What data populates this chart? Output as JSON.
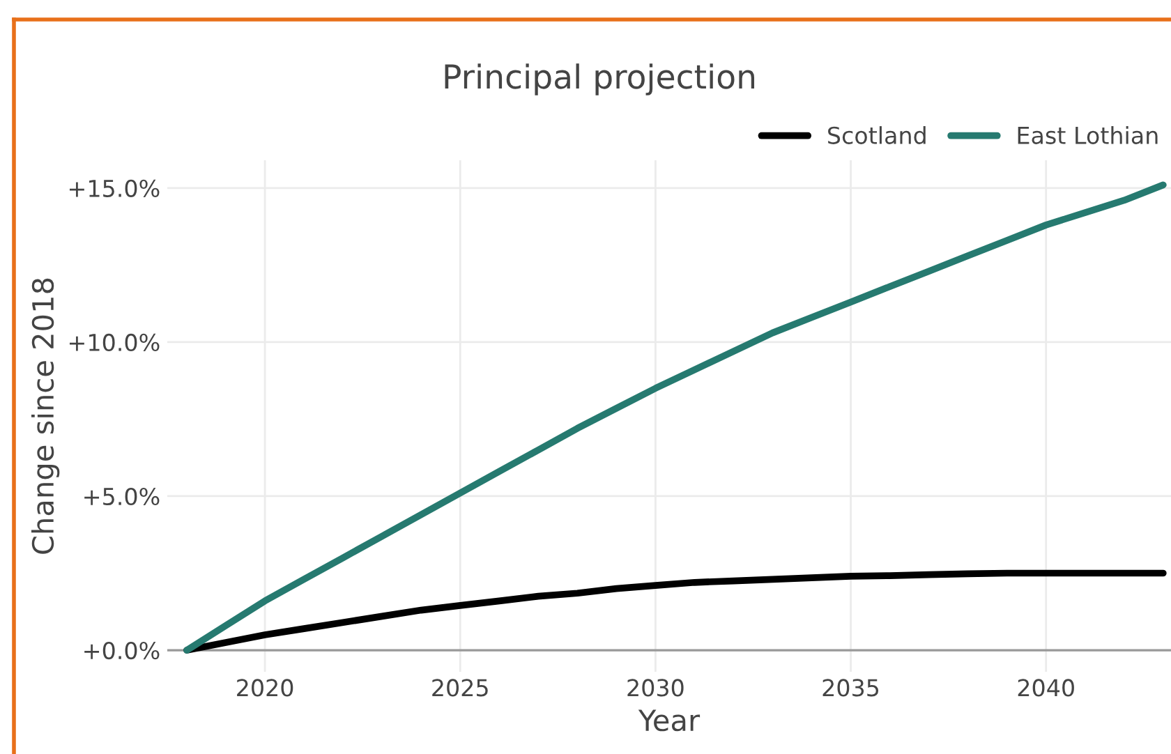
{
  "chart_data": {
    "type": "line",
    "title": "Principal projection",
    "xlabel": "Year",
    "ylabel": "Change since 2018",
    "x": [
      2018,
      2019,
      2020,
      2021,
      2022,
      2023,
      2024,
      2025,
      2026,
      2027,
      2028,
      2029,
      2030,
      2031,
      2032,
      2033,
      2034,
      2035,
      2036,
      2037,
      2038,
      2039,
      2040,
      2041,
      2042,
      2043
    ],
    "series": [
      {
        "name": "Scotland",
        "color": "#000000",
        "values": [
          0,
          0.25,
          0.5,
          0.7,
          0.9,
          1.1,
          1.3,
          1.45,
          1.6,
          1.75,
          1.85,
          2.0,
          2.1,
          2.2,
          2.25,
          2.3,
          2.35,
          2.4,
          2.42,
          2.45,
          2.48,
          2.5,
          2.5,
          2.5,
          2.5,
          2.5
        ]
      },
      {
        "name": "East Lothian",
        "color": "#267a70",
        "values": [
          0,
          0.8,
          1.6,
          2.3,
          3.0,
          3.7,
          4.4,
          5.1,
          5.8,
          6.5,
          7.2,
          7.85,
          8.5,
          9.1,
          9.7,
          10.3,
          10.8,
          11.3,
          11.8,
          12.3,
          12.8,
          13.3,
          13.8,
          14.2,
          14.6,
          15.1
        ]
      }
    ],
    "xlim": [
      2017.5,
      2043.2
    ],
    "xticks": [
      2020,
      2025,
      2030,
      2035,
      2040
    ],
    "ylim": [
      -0.7,
      15.9
    ],
    "yticks": [
      {
        "value": 0,
        "label": "+0.0%"
      },
      {
        "value": 5,
        "label": "+5.0%"
      },
      {
        "value": 10,
        "label": "+10.0%"
      },
      {
        "value": 15,
        "label": "+15.0%"
      }
    ],
    "grid": true,
    "legend": "top right",
    "marker": "none",
    "line_style": "solid"
  }
}
